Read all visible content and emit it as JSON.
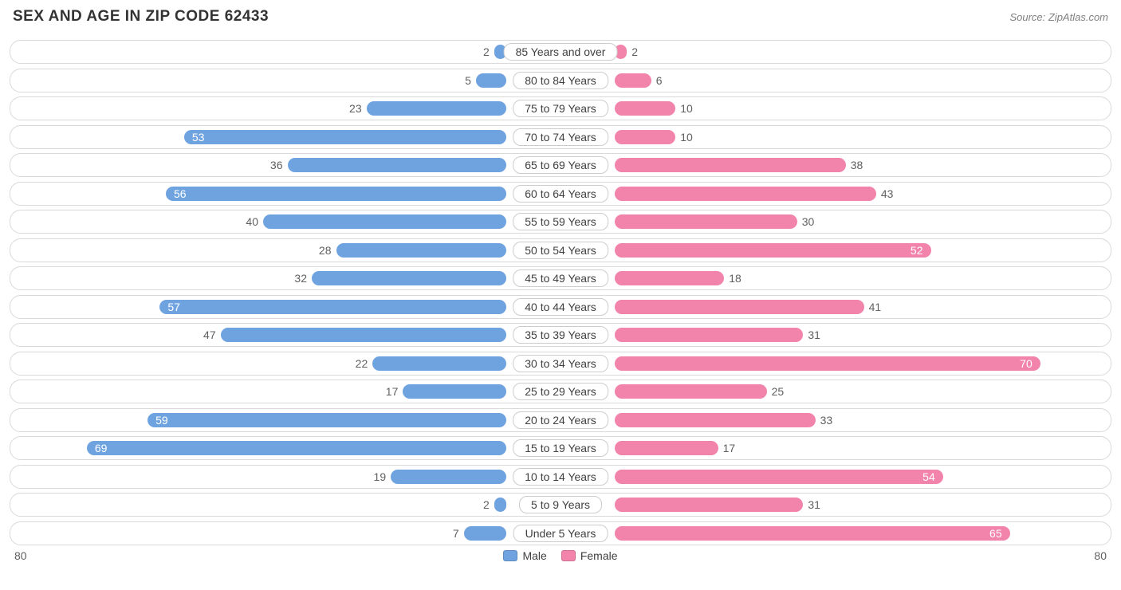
{
  "title": "SEX AND AGE IN ZIP CODE 62433",
  "source": "Source: ZipAtlas.com",
  "chart": {
    "type": "population-pyramid",
    "male_color": "#6fa3e0",
    "female_color": "#f283ab",
    "row_border_color": "#d9d9d9",
    "center_label_border": "#cccccc",
    "background_color": "#ffffff",
    "text_color": "#404040",
    "value_text_color": "#606060",
    "value_inside_color": "#ffffff",
    "axis_max": 80,
    "inside_threshold": 50,
    "axis_label_left": "80",
    "axis_label_right": "80",
    "legend": [
      {
        "label": "Male",
        "color": "#6fa3e0"
      },
      {
        "label": "Female",
        "color": "#f283ab"
      }
    ],
    "rows": [
      {
        "label": "85 Years and over",
        "male": 2,
        "female": 2
      },
      {
        "label": "80 to 84 Years",
        "male": 5,
        "female": 6
      },
      {
        "label": "75 to 79 Years",
        "male": 23,
        "female": 10
      },
      {
        "label": "70 to 74 Years",
        "male": 53,
        "female": 10
      },
      {
        "label": "65 to 69 Years",
        "male": 36,
        "female": 38
      },
      {
        "label": "60 to 64 Years",
        "male": 56,
        "female": 43
      },
      {
        "label": "55 to 59 Years",
        "male": 40,
        "female": 30
      },
      {
        "label": "50 to 54 Years",
        "male": 28,
        "female": 52
      },
      {
        "label": "45 to 49 Years",
        "male": 32,
        "female": 18
      },
      {
        "label": "40 to 44 Years",
        "male": 57,
        "female": 41
      },
      {
        "label": "35 to 39 Years",
        "male": 47,
        "female": 31
      },
      {
        "label": "30 to 34 Years",
        "male": 22,
        "female": 70
      },
      {
        "label": "25 to 29 Years",
        "male": 17,
        "female": 25
      },
      {
        "label": "20 to 24 Years",
        "male": 59,
        "female": 33
      },
      {
        "label": "15 to 19 Years",
        "male": 69,
        "female": 17
      },
      {
        "label": "10 to 14 Years",
        "male": 19,
        "female": 54
      },
      {
        "label": "5 to 9 Years",
        "male": 2,
        "female": 31
      },
      {
        "label": "Under 5 Years",
        "male": 7,
        "female": 65
      }
    ]
  }
}
